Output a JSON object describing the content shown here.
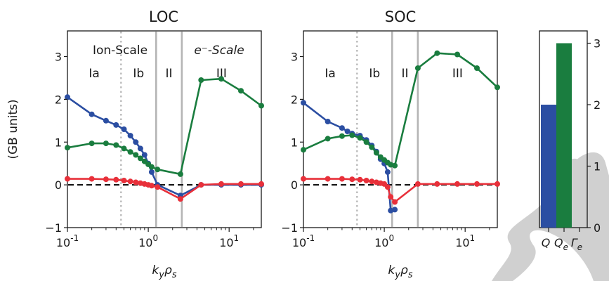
{
  "chart_data": [
    {
      "type": "line",
      "title": "LOC",
      "xlabel": "k_y ρ_s",
      "ylabel": "(GB units)",
      "xscale": "log",
      "xlim": [
        0.1,
        25
      ],
      "ylim": [
        -1,
        3.6
      ],
      "xtick_labels": [
        "10^-1",
        "10^0",
        "10^1"
      ],
      "ytick_labels": [
        "−1",
        "0",
        "1",
        "2",
        "3"
      ],
      "region_labels": [
        "Ia",
        "Ib",
        "II",
        "III"
      ],
      "scale_labels": [
        "Ion-Scale",
        "e⁻-Scale"
      ],
      "series": [
        {
          "color": "#2b4ea2",
          "x": [
            0.1,
            0.2,
            0.3,
            0.4,
            0.5,
            0.6,
            0.7,
            0.8,
            0.9,
            1.0,
            1.1,
            1.3,
            2.5,
            4.5,
            8,
            14,
            25
          ],
          "y": [
            2.05,
            1.65,
            1.5,
            1.4,
            1.3,
            1.15,
            1.0,
            0.85,
            0.7,
            0.5,
            0.3,
            0.0,
            -0.25,
            0.0,
            0.0,
            0.0,
            0.0
          ]
        },
        {
          "color": "#1a7d3f",
          "x": [
            0.1,
            0.2,
            0.3,
            0.4,
            0.5,
            0.6,
            0.7,
            0.8,
            0.9,
            1.0,
            1.1,
            1.3,
            2.5,
            4.5,
            8,
            14,
            25
          ],
          "y": [
            0.87,
            0.97,
            0.97,
            0.93,
            0.85,
            0.77,
            0.7,
            0.62,
            0.55,
            0.48,
            0.42,
            0.36,
            0.25,
            2.45,
            2.48,
            2.2,
            1.85
          ]
        },
        {
          "color": "#e8303a",
          "x": [
            0.1,
            0.2,
            0.3,
            0.4,
            0.5,
            0.6,
            0.7,
            0.8,
            0.9,
            1.0,
            1.1,
            1.3,
            2.5,
            4.5,
            8,
            14,
            25
          ],
          "y": [
            0.14,
            0.14,
            0.13,
            0.12,
            0.1,
            0.08,
            0.06,
            0.04,
            0.02,
            0.0,
            -0.02,
            -0.05,
            -0.33,
            0.0,
            0.02,
            0.02,
            0.02
          ]
        }
      ],
      "reference_line": {
        "y": 0,
        "style": "dashed",
        "color": "#1a1a1a"
      },
      "vlines": [
        {
          "x": 0.46,
          "style": "dotted",
          "color": "#b5b5b5"
        },
        {
          "x": 1.25,
          "style": "solid",
          "color": "#b5b5b5"
        },
        {
          "x": 2.6,
          "style": "solid",
          "color": "#b5b5b5"
        }
      ]
    },
    {
      "type": "line",
      "title": "SOC",
      "xlabel": "k_y ρ_s",
      "ylabel": "",
      "xscale": "log",
      "xlim": [
        0.1,
        25
      ],
      "ylim": [
        -1,
        3.6
      ],
      "xtick_labels": [
        "10^-1",
        "10^0",
        "10^1"
      ],
      "ytick_labels": [
        "−1",
        "0",
        "1",
        "2",
        "3"
      ],
      "region_labels": [
        "Ia",
        "Ib",
        "II",
        "III"
      ],
      "series": [
        {
          "color": "#2b4ea2",
          "x": [
            0.1,
            0.2,
            0.3,
            0.35,
            0.4,
            0.5,
            0.6,
            0.7,
            0.8,
            0.9,
            1.0,
            1.1,
            1.2,
            1.35
          ],
          "y": [
            1.92,
            1.48,
            1.33,
            1.25,
            1.2,
            1.15,
            1.05,
            0.92,
            0.78,
            0.6,
            0.5,
            0.3,
            -0.6,
            -0.58
          ]
        },
        {
          "color": "#1a7d3f",
          "x": [
            0.1,
            0.2,
            0.3,
            0.4,
            0.5,
            0.6,
            0.7,
            0.8,
            0.9,
            1.0,
            1.1,
            1.2,
            1.35,
            2.6,
            4.5,
            8,
            14,
            25
          ],
          "y": [
            0.82,
            1.08,
            1.14,
            1.16,
            1.1,
            1.0,
            0.88,
            0.75,
            0.65,
            0.58,
            0.52,
            0.47,
            0.45,
            2.73,
            3.08,
            3.05,
            2.73,
            2.28
          ]
        },
        {
          "color": "#e8303a",
          "x": [
            0.1,
            0.2,
            0.3,
            0.4,
            0.5,
            0.6,
            0.7,
            0.8,
            0.9,
            1.0,
            1.1,
            1.2,
            1.35,
            2.6,
            4.5,
            8,
            14,
            25
          ],
          "y": [
            0.14,
            0.14,
            0.14,
            0.13,
            0.12,
            0.1,
            0.08,
            0.06,
            0.04,
            0.02,
            -0.05,
            -0.28,
            -0.4,
            0.02,
            0.02,
            0.02,
            0.02,
            0.02
          ]
        }
      ],
      "reference_line": {
        "y": 0,
        "style": "dashed",
        "color": "#1a1a1a"
      },
      "vlines": [
        {
          "x": 0.46,
          "style": "dotted",
          "color": "#b5b5b5"
        },
        {
          "x": 1.25,
          "style": "solid",
          "color": "#b5b5b5"
        },
        {
          "x": 2.6,
          "style": "solid",
          "color": "#b5b5b5"
        }
      ]
    },
    {
      "type": "bar",
      "categories": [
        "Q",
        "Q",
        "Γ"
      ],
      "category_subscripts": [
        "",
        "e",
        "e"
      ],
      "values": [
        2,
        3,
        0
      ],
      "colors": [
        "#2b4ea2",
        "#1a7d3f",
        "#e8303a"
      ],
      "ylim": [
        0,
        3.2
      ],
      "ytick_labels": [
        "0",
        "1",
        "2",
        "3"
      ],
      "ytick_side": "right"
    }
  ],
  "watermark": {
    "color": "#c8c8c8"
  }
}
